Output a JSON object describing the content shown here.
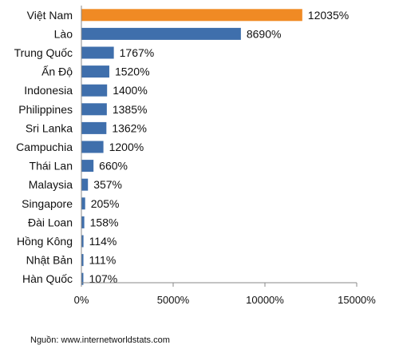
{
  "chart_data": {
    "type": "bar",
    "orientation": "horizontal",
    "categories": [
      "Việt Nam",
      "Lào",
      "Trung Quốc",
      "Ấn Độ",
      "Indonesia",
      "Philippines",
      "Sri Lanka",
      "Campuchia",
      "Thái Lan",
      "Malaysia",
      "Singapore",
      "Đài Loan",
      "Hồng Kông",
      "Nhật Bản",
      "Hàn Quốc"
    ],
    "values": [
      12035,
      8690,
      1767,
      1520,
      1400,
      1385,
      1362,
      1200,
      660,
      357,
      205,
      158,
      114,
      111,
      107
    ],
    "value_labels": [
      "12035%",
      "8690%",
      "1767%",
      "1520%",
      "1400%",
      "1385%",
      "1362%",
      "1200%",
      "660%",
      "357%",
      "205%",
      "158%",
      "114%",
      "111%",
      "107%"
    ],
    "highlight_index": 0,
    "xlim": [
      0,
      15000
    ],
    "xticks": [
      0,
      5000,
      10000,
      15000
    ],
    "xtick_labels": [
      "0%",
      "5000%",
      "10000%",
      "15000%"
    ],
    "grid": false,
    "colors": {
      "bar": "#3f6fac",
      "highlight": "#f08a24",
      "axis": "#888888"
    }
  },
  "source": "Nguồn: www.internetworldstats.com"
}
